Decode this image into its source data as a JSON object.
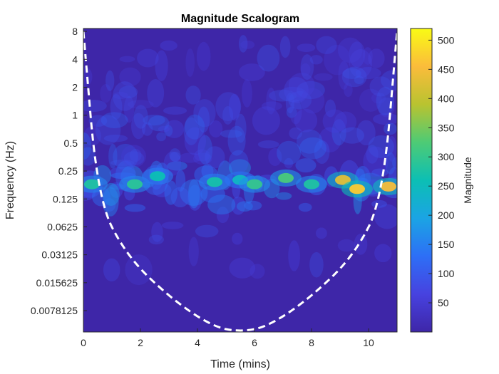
{
  "chart_data": {
    "type": "heatmap",
    "title": "Magnitude Scalogram",
    "xlabel": "Time (mins)",
    "ylabel": "Frequency (Hz)",
    "colorbar_label": "Magnitude",
    "x_range": [
      0,
      11
    ],
    "x_ticks": [
      0,
      2,
      4,
      6,
      8,
      10
    ],
    "y_scale": "log2",
    "y_range": [
      0.0046,
      8.6
    ],
    "y_ticks": [
      8,
      4,
      2,
      1,
      0.5,
      0.25,
      0.125,
      0.0625,
      0.03125,
      0.015625,
      0.0078125
    ],
    "y_tick_labels": [
      "8",
      "4",
      "2",
      "1",
      "0.5",
      "0.25",
      "0.125",
      "0.0625",
      "0.03125",
      "0.015625",
      "0.0078125"
    ],
    "colorbar_range": [
      0,
      520
    ],
    "colorbar_ticks": [
      50,
      100,
      150,
      200,
      250,
      300,
      350,
      400,
      450,
      500
    ],
    "colormap": "parula",
    "colormap_stops": [
      "#3e26a8",
      "#4742e0",
      "#2d6ff6",
      "#1ba4e4",
      "#0cbfb4",
      "#4ecb75",
      "#b9c330",
      "#fbbc3b",
      "#f9fb15"
    ],
    "cone_of_influence": {
      "style": "white dashed",
      "points": [
        [
          0,
          8
        ],
        [
          0.5,
          0.125
        ],
        [
          1.5,
          0.031
        ],
        [
          3,
          0.011
        ],
        [
          4.5,
          0.0053
        ],
        [
          5.5,
          0.0046
        ],
        [
          6.5,
          0.0053
        ],
        [
          8,
          0.011
        ],
        [
          9.5,
          0.031
        ],
        [
          10.5,
          0.125
        ],
        [
          11,
          8
        ]
      ]
    },
    "hotspots": [
      {
        "time": 0.3,
        "freq": 0.18,
        "magnitude": 280
      },
      {
        "time": 1.8,
        "freq": 0.18,
        "magnitude": 290
      },
      {
        "time": 2.6,
        "freq": 0.22,
        "magnitude": 260
      },
      {
        "time": 4.6,
        "freq": 0.19,
        "magnitude": 270
      },
      {
        "time": 5.5,
        "freq": 0.2,
        "magnitude": 240
      },
      {
        "time": 6.0,
        "freq": 0.18,
        "magnitude": 300
      },
      {
        "time": 7.1,
        "freq": 0.21,
        "magnitude": 320
      },
      {
        "time": 8.0,
        "freq": 0.18,
        "magnitude": 280
      },
      {
        "time": 9.1,
        "freq": 0.2,
        "magnitude": 430
      },
      {
        "time": 9.6,
        "freq": 0.16,
        "magnitude": 470
      },
      {
        "time": 10.7,
        "freq": 0.17,
        "magnitude": 450
      }
    ]
  }
}
